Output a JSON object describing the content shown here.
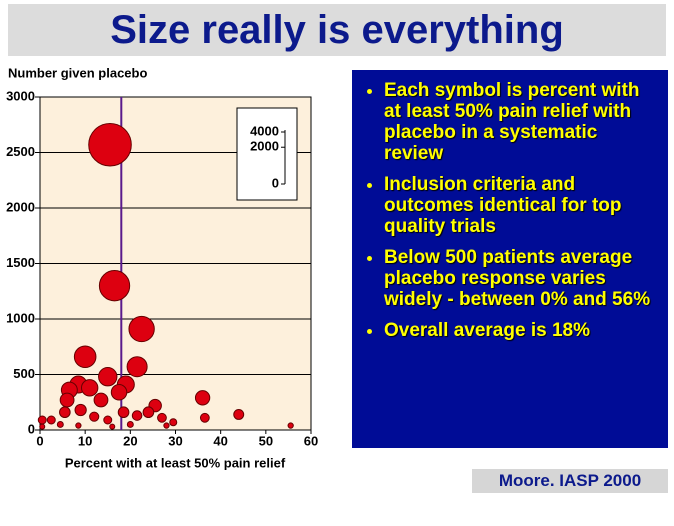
{
  "slide": {
    "title": "Size really is everything",
    "bullets": [
      "Each symbol is percent with at least 50% pain relief with placebo in a systematic review",
      "Inclusion criteria and outcomes identical for top quality trials",
      "Below 500 patients average placebo response varies widely - between 0% and 56%",
      "Overall average is 18%"
    ],
    "citation": "Moore. IASP 2000"
  },
  "chart_data": {
    "type": "bubble",
    "y_label": "Number given placebo",
    "x_label": "Percent with at least 50% pain relief",
    "x": [
      15.5,
      16.5,
      22.5,
      10,
      21.5,
      15,
      19,
      8.5,
      11,
      6.5,
      17.5,
      36,
      6,
      13.5,
      25.5,
      9,
      5.5,
      24,
      18.5,
      44,
      21.5,
      12,
      27,
      36.5,
      0.5,
      2.5,
      15,
      29.5,
      4.5,
      20,
      8.5,
      28,
      55.5,
      0.5,
      16
    ],
    "values": [
      2570,
      1300,
      910,
      660,
      570,
      480,
      410,
      410,
      380,
      360,
      340,
      290,
      270,
      270,
      220,
      180,
      160,
      160,
      160,
      140,
      130,
      120,
      110,
      110,
      90,
      90,
      90,
      70,
      50,
      50,
      40,
      40,
      40,
      30,
      30
    ],
    "color": "#dd0010",
    "xlim": [
      0,
      60
    ],
    "ylim": [
      0,
      3000
    ],
    "xticks": [
      0,
      10,
      20,
      30,
      40,
      50,
      60
    ],
    "yticks": [
      0,
      500,
      1000,
      1500,
      2000,
      2500,
      3000
    ],
    "reference_x": 18,
    "grid": true,
    "size_legend_ticks": [
      0,
      2000,
      4000
    ]
  }
}
